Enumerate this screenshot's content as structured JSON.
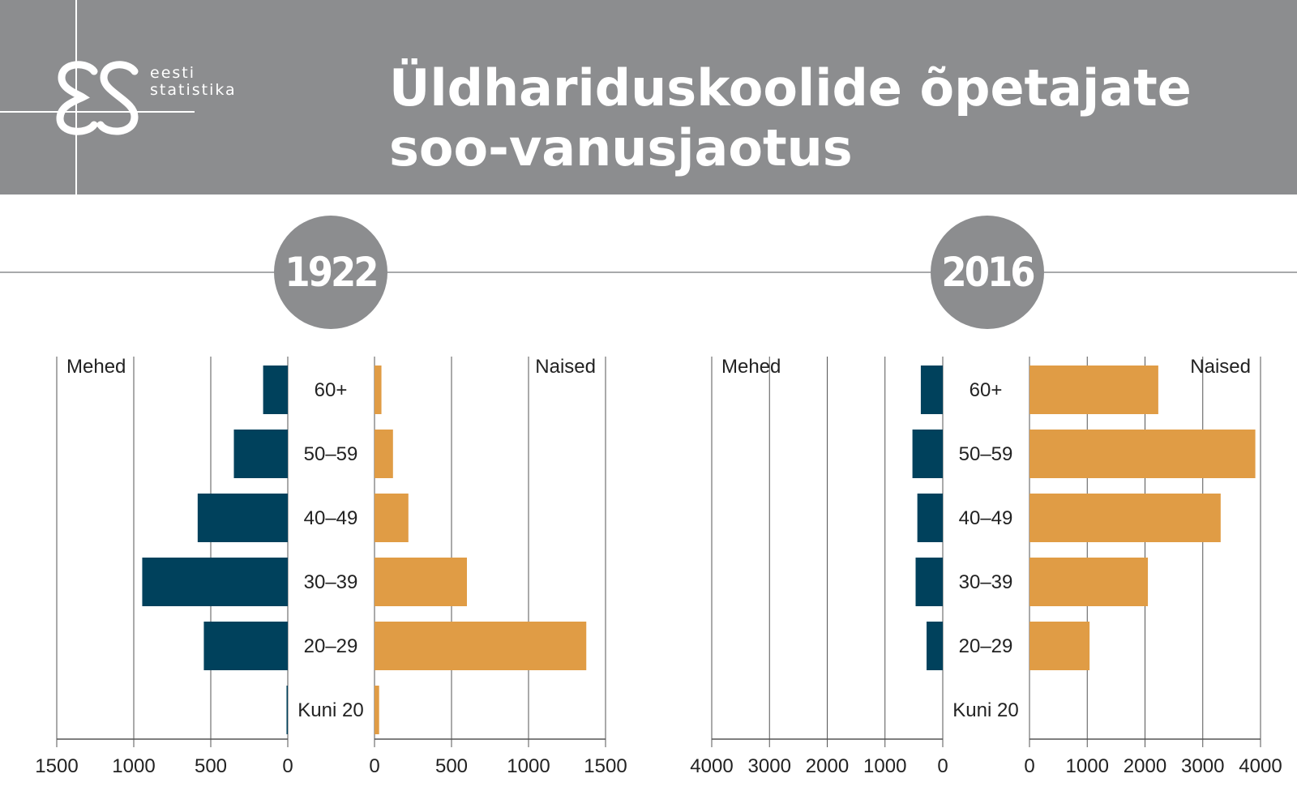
{
  "header": {
    "logo_line1": "eesti",
    "logo_line2": "statistika",
    "title_line1": "Üldhariduskoolide õpetajate",
    "title_line2": "soo-vanusjaotus"
  },
  "colors": {
    "header_bg": "#8c8d8f",
    "men": "#00415c",
    "women": "#e09c45"
  },
  "chart_data": [
    {
      "type": "bar",
      "orientation": "horizontal",
      "title": "1922",
      "categories": [
        "60+",
        "50–59",
        "40–49",
        "30–39",
        "20–29",
        "Kuni 20"
      ],
      "series": [
        {
          "name": "Mehed",
          "values": [
            160,
            350,
            585,
            945,
            545,
            8
          ],
          "xlim": [
            0,
            1500
          ],
          "ticks": [
            1500,
            1000,
            500,
            0
          ]
        },
        {
          "name": "Naised",
          "values": [
            45,
            120,
            220,
            600,
            1375,
            30
          ],
          "xlim": [
            0,
            1500
          ],
          "ticks": [
            0,
            500,
            1000,
            1500
          ]
        }
      ],
      "grid": true,
      "legend": "inside-top"
    },
    {
      "type": "bar",
      "orientation": "horizontal",
      "title": "2016",
      "categories": [
        "60+",
        "50–59",
        "40–49",
        "30–39",
        "20–29",
        "Kuni 20"
      ],
      "series": [
        {
          "name": "Mehed",
          "values": [
            380,
            525,
            440,
            470,
            280,
            0
          ],
          "xlim": [
            0,
            4000
          ],
          "ticks": [
            4000,
            3000,
            2000,
            1000,
            0
          ]
        },
        {
          "name": "Naised",
          "values": [
            2230,
            3910,
            3310,
            2050,
            1040,
            0
          ],
          "xlim": [
            0,
            4000
          ],
          "ticks": [
            0,
            1000,
            2000,
            3000,
            4000
          ]
        }
      ],
      "grid": true,
      "legend": "inside-top"
    }
  ]
}
